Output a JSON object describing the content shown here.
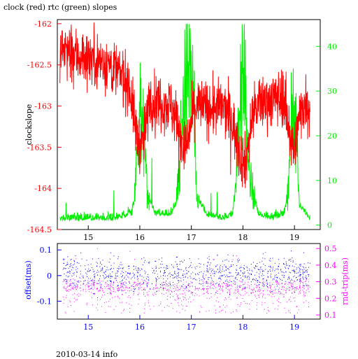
{
  "title": "clock (red) rtc (green) slopes",
  "footer": "2010-03-14 info",
  "colors": {
    "clock": "#ff0000",
    "rtc": "#00ee00",
    "offset": "#0000ff",
    "rndtrip": "#ff00ff",
    "axis": "#000000"
  },
  "chart_data": [
    {
      "type": "line",
      "xlim": [
        14.4,
        19.5
      ],
      "x_ticks": [
        15,
        16,
        17,
        18,
        19
      ],
      "x_tick_labels": [
        "15",
        "16",
        "17",
        "18",
        "19"
      ],
      "ylabel": "clockslope",
      "ylim": [
        -164.5,
        -161.95
      ],
      "y_ticks": [
        -162,
        -162.5,
        -163,
        -163.5,
        -164,
        -164.5
      ],
      "y_tick_labels": [
        "-162",
        "-162.5",
        "-163",
        "-163.5",
        "-164",
        "-164.5"
      ],
      "y2lim": [
        -1,
        46
      ],
      "y2_ticks": [
        0,
        10,
        20,
        30,
        40
      ],
      "y2_tick_labels": [
        "0",
        "10",
        "20",
        "30",
        "40"
      ],
      "grid": false,
      "series": [
        {
          "name": "clock",
          "axis": "left",
          "x": [
            14.45,
            14.6,
            14.8,
            15.0,
            15.2,
            15.4,
            15.6,
            15.8,
            15.95,
            16.05,
            16.2,
            16.4,
            16.6,
            16.75,
            16.85,
            16.95,
            17.05,
            17.2,
            17.4,
            17.6,
            17.8,
            17.95,
            18.05,
            18.2,
            18.4,
            18.6,
            18.8,
            18.9,
            19.0,
            19.1,
            19.2,
            19.3
          ],
          "y": [
            -162.3,
            -162.35,
            -162.4,
            -162.4,
            -162.45,
            -162.5,
            -162.6,
            -162.75,
            -163.4,
            -163.5,
            -162.9,
            -162.95,
            -163.0,
            -163.2,
            -163.55,
            -163.4,
            -163.0,
            -163.0,
            -163.05,
            -163.0,
            -163.2,
            -163.6,
            -163.7,
            -163.05,
            -162.95,
            -162.9,
            -162.9,
            -163.3,
            -163.55,
            -163.1,
            -162.95,
            -163.0
          ]
        },
        {
          "name": "rtc",
          "axis": "right",
          "x": [
            14.45,
            15.0,
            15.5,
            15.85,
            15.9,
            16.0,
            16.1,
            16.15,
            16.3,
            16.6,
            16.7,
            16.75,
            16.85,
            16.95,
            17.05,
            17.1,
            17.3,
            17.6,
            17.8,
            17.85,
            17.95,
            18.05,
            18.1,
            18.3,
            18.6,
            18.8,
            18.85,
            18.95,
            19.05,
            19.1,
            19.3
          ],
          "y": [
            1,
            1,
            1,
            2,
            8,
            24,
            22,
            6,
            2,
            2,
            4,
            10,
            28,
            36,
            26,
            6,
            2,
            1,
            2,
            8,
            30,
            32,
            12,
            2,
            1,
            2,
            5,
            22,
            20,
            4,
            1
          ]
        }
      ]
    },
    {
      "type": "scatter",
      "xlim": [
        14.4,
        19.5
      ],
      "x_ticks": [
        15,
        16,
        17,
        18,
        19
      ],
      "x_tick_labels": [
        "15",
        "16",
        "17",
        "18",
        "19"
      ],
      "ylabel": "offset(ms)",
      "ylim": [
        -0.17,
        0.125
      ],
      "y_ticks": [
        0.1,
        0,
        -0.1
      ],
      "y_tick_labels": [
        "0.1",
        "0",
        "-0.1"
      ],
      "y2label": "rnd-trip(ms)",
      "y2lim": [
        0.075,
        0.53
      ],
      "y2_ticks": [
        0.5,
        0.4,
        0.3,
        0.2,
        0.1
      ],
      "y2_tick_labels": [
        "0.5",
        "0.4",
        "0.3",
        "0.2",
        "0.1"
      ],
      "series": [
        {
          "name": "offset",
          "axis": "left",
          "x": [
            14.5,
            15.0,
            15.5,
            16.0,
            16.5,
            17.0,
            17.5,
            18.0,
            18.5,
            19.0,
            19.3
          ],
          "y": [
            0.01,
            0.01,
            0.005,
            0.01,
            0.01,
            0.0,
            0.01,
            0.005,
            0.01,
            0.01,
            0.01
          ]
        },
        {
          "name": "rnd-trip",
          "axis": "right",
          "x": [
            14.5,
            15.0,
            15.5,
            16.0,
            16.5,
            17.0,
            17.5,
            18.0,
            18.5,
            19.0,
            19.3
          ],
          "y": [
            0.27,
            0.27,
            0.26,
            0.27,
            0.26,
            0.26,
            0.27,
            0.26,
            0.26,
            0.27,
            0.27
          ]
        }
      ]
    }
  ]
}
